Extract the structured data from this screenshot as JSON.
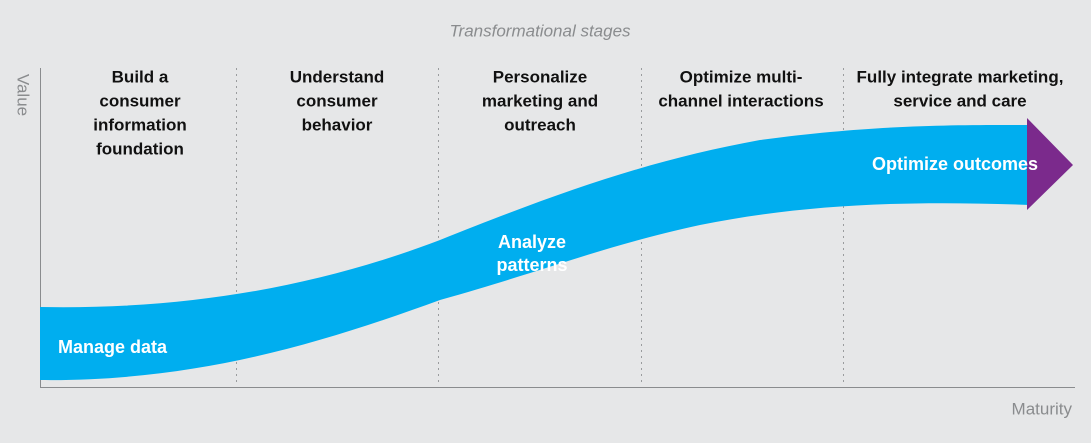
{
  "title": "Transformational stages",
  "y_axis_label": "Value",
  "x_axis_label": "Maturity",
  "stages": [
    {
      "lines": [
        "Build a",
        "consumer",
        "information",
        "foundation"
      ]
    },
    {
      "lines": [
        "Understand",
        "consumer",
        "behavior"
      ]
    },
    {
      "lines": [
        "Personalize",
        "marketing and",
        "outreach"
      ]
    },
    {
      "lines": [
        "Optimize multi-",
        "channel interactions"
      ]
    },
    {
      "lines": [
        "Fully integrate marketing,",
        "service and care"
      ]
    }
  ],
  "curve_labels": [
    {
      "lines": [
        "Manage data"
      ]
    },
    {
      "lines": [
        "Analyze",
        "patterns"
      ]
    },
    {
      "lines": [
        "Optimize outcomes"
      ]
    }
  ]
}
